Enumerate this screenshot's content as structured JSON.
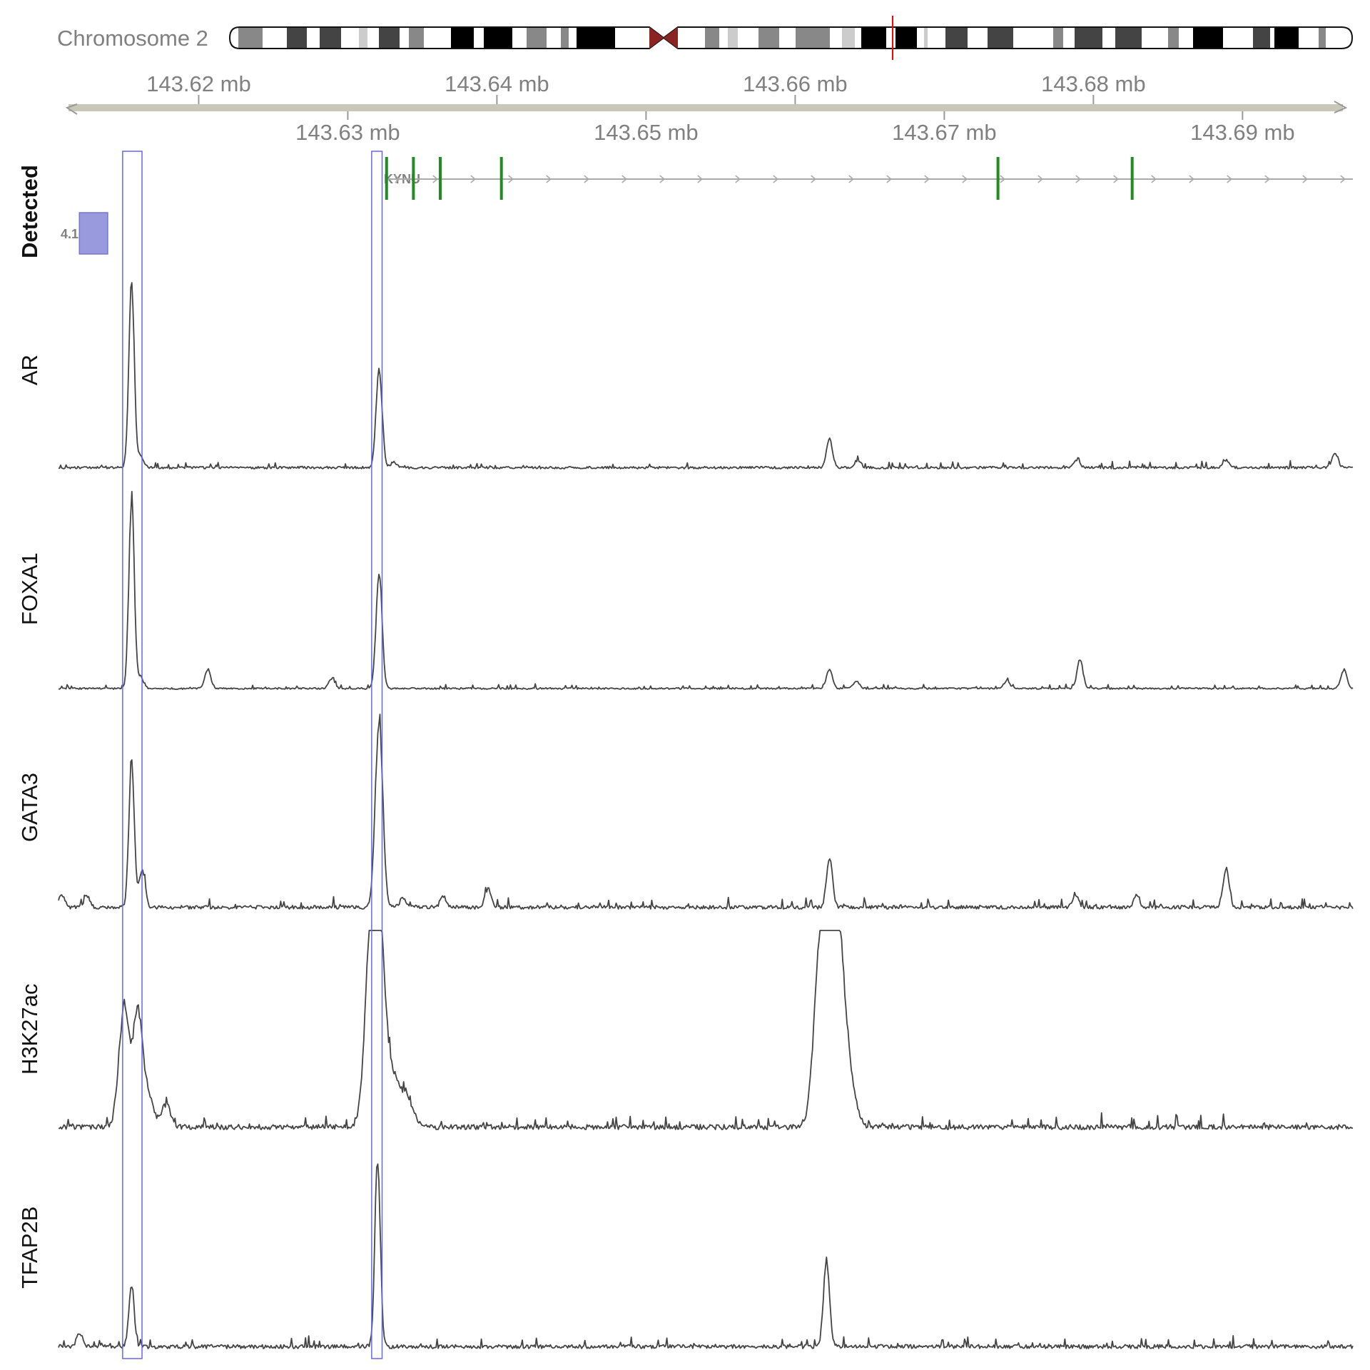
{
  "chromosome": {
    "label": "Chromosome 2",
    "band_color": "#333333",
    "centromere_color": "#8b2323",
    "marker_color": "#ff0000"
  },
  "chart_data": {
    "type": "line",
    "x_unit": "mb",
    "xlim": [
      143.6106,
      143.6974
    ],
    "top_ticks": [
      {
        "value": 143.62,
        "label": "143.62 mb"
      },
      {
        "value": 143.64,
        "label": "143.64 mb"
      },
      {
        "value": 143.66,
        "label": "143.66 mb"
      },
      {
        "value": 143.68,
        "label": "143.68 mb"
      }
    ],
    "bottom_ticks": [
      {
        "value": 143.63,
        "label": "143.63 mb"
      },
      {
        "value": 143.65,
        "label": "143.65 mb"
      },
      {
        "value": 143.67,
        "label": "143.67 mb"
      },
      {
        "value": 143.69,
        "label": "143.69 mb"
      }
    ],
    "gene": {
      "name": "KYNU",
      "start": 143.6326,
      "end": 143.6974,
      "exons": [
        143.6326,
        143.6344,
        143.6362,
        143.6403,
        143.6736,
        143.6826
      ],
      "color": "#228b22"
    },
    "detected_track": {
      "label": "Detected",
      "region_label": "4.1",
      "regions": [
        {
          "start": 143.612,
          "end": 143.6139
        }
      ],
      "color": "#9999dd"
    },
    "highlight_regions": [
      {
        "start": 143.6149,
        "end": 143.6162
      },
      {
        "start": 143.6316,
        "end": 143.6323
      }
    ],
    "highlight_color": "#6666ee",
    "series": [
      {
        "name": "AR",
        "peaks": [
          {
            "x": 143.6155,
            "height": 1.0,
            "width": 0.00018
          },
          {
            "x": 143.6161,
            "height": 0.06,
            "width": 0.0002
          },
          {
            "x": 143.6321,
            "height": 0.53,
            "width": 0.0002
          },
          {
            "x": 143.6331,
            "height": 0.03,
            "width": 0.0002
          },
          {
            "x": 143.6623,
            "height": 0.15,
            "width": 0.0002
          },
          {
            "x": 143.6642,
            "height": 0.04,
            "width": 0.0002
          },
          {
            "x": 143.6789,
            "height": 0.04,
            "width": 0.0002
          },
          {
            "x": 143.6889,
            "height": 0.04,
            "width": 0.0002
          },
          {
            "x": 143.6962,
            "height": 0.08,
            "width": 0.0002
          }
        ],
        "noise": 0.012,
        "seed": 11
      },
      {
        "name": "FOXA1",
        "peaks": [
          {
            "x": 143.6155,
            "height": 1.0,
            "width": 0.00018
          },
          {
            "x": 143.6161,
            "height": 0.06,
            "width": 0.0002
          },
          {
            "x": 143.6206,
            "height": 0.1,
            "width": 0.0002
          },
          {
            "x": 143.6289,
            "height": 0.05,
            "width": 0.0002
          },
          {
            "x": 143.6321,
            "height": 0.62,
            "width": 0.0002
          },
          {
            "x": 143.6623,
            "height": 0.1,
            "width": 0.0002
          },
          {
            "x": 143.6641,
            "height": 0.04,
            "width": 0.0002
          },
          {
            "x": 143.6742,
            "height": 0.04,
            "width": 0.0002
          },
          {
            "x": 143.6791,
            "height": 0.15,
            "width": 0.0002
          },
          {
            "x": 143.6968,
            "height": 0.1,
            "width": 0.0002
          }
        ],
        "noise": 0.008,
        "seed": 23
      },
      {
        "name": "GATA3",
        "peaks": [
          {
            "x": 143.6108,
            "height": 0.07,
            "width": 0.0002
          },
          {
            "x": 143.6125,
            "height": 0.06,
            "width": 0.0002
          },
          {
            "x": 143.6155,
            "height": 0.78,
            "width": 0.00018
          },
          {
            "x": 143.6162,
            "height": 0.2,
            "width": 0.0002
          },
          {
            "x": 143.6321,
            "height": 1.0,
            "width": 0.00025
          },
          {
            "x": 143.6337,
            "height": 0.05,
            "width": 0.0002
          },
          {
            "x": 143.6364,
            "height": 0.06,
            "width": 0.0002
          },
          {
            "x": 143.6394,
            "height": 0.1,
            "width": 0.0002
          },
          {
            "x": 143.6623,
            "height": 0.26,
            "width": 0.0002
          },
          {
            "x": 143.6788,
            "height": 0.06,
            "width": 0.0002
          },
          {
            "x": 143.6829,
            "height": 0.06,
            "width": 0.0002
          },
          {
            "x": 143.6889,
            "height": 0.2,
            "width": 0.0002
          }
        ],
        "noise": 0.018,
        "seed": 37
      },
      {
        "name": "H3K27ac",
        "peaks": [
          {
            "x": 143.615,
            "height": 0.62,
            "width": 0.00035
          },
          {
            "x": 143.6159,
            "height": 0.55,
            "width": 0.0003
          },
          {
            "x": 143.6165,
            "height": 0.18,
            "width": 0.0004
          },
          {
            "x": 143.6178,
            "height": 0.12,
            "width": 0.0003
          },
          {
            "x": 143.6314,
            "height": 0.68,
            "width": 0.00035
          },
          {
            "x": 143.6318,
            "height": 0.62,
            "width": 0.0003
          },
          {
            "x": 143.6322,
            "height": 0.9,
            "width": 0.00035
          },
          {
            "x": 143.6331,
            "height": 0.25,
            "width": 0.0004
          },
          {
            "x": 143.634,
            "height": 0.15,
            "width": 0.0004
          },
          {
            "x": 143.6616,
            "height": 0.72,
            "width": 0.0004
          },
          {
            "x": 143.6622,
            "height": 0.8,
            "width": 0.0004
          },
          {
            "x": 143.6628,
            "height": 0.85,
            "width": 0.0004
          },
          {
            "x": 143.6634,
            "height": 0.35,
            "width": 0.0005
          }
        ],
        "noise": 0.025,
        "seed": 53
      },
      {
        "name": "TFAP2B",
        "peaks": [
          {
            "x": 143.612,
            "height": 0.07,
            "width": 0.0002
          },
          {
            "x": 143.6155,
            "height": 0.32,
            "width": 0.00018
          },
          {
            "x": 143.632,
            "height": 1.0,
            "width": 0.00018
          },
          {
            "x": 143.6621,
            "height": 0.45,
            "width": 0.0002
          }
        ],
        "noise": 0.02,
        "seed": 71
      }
    ]
  }
}
